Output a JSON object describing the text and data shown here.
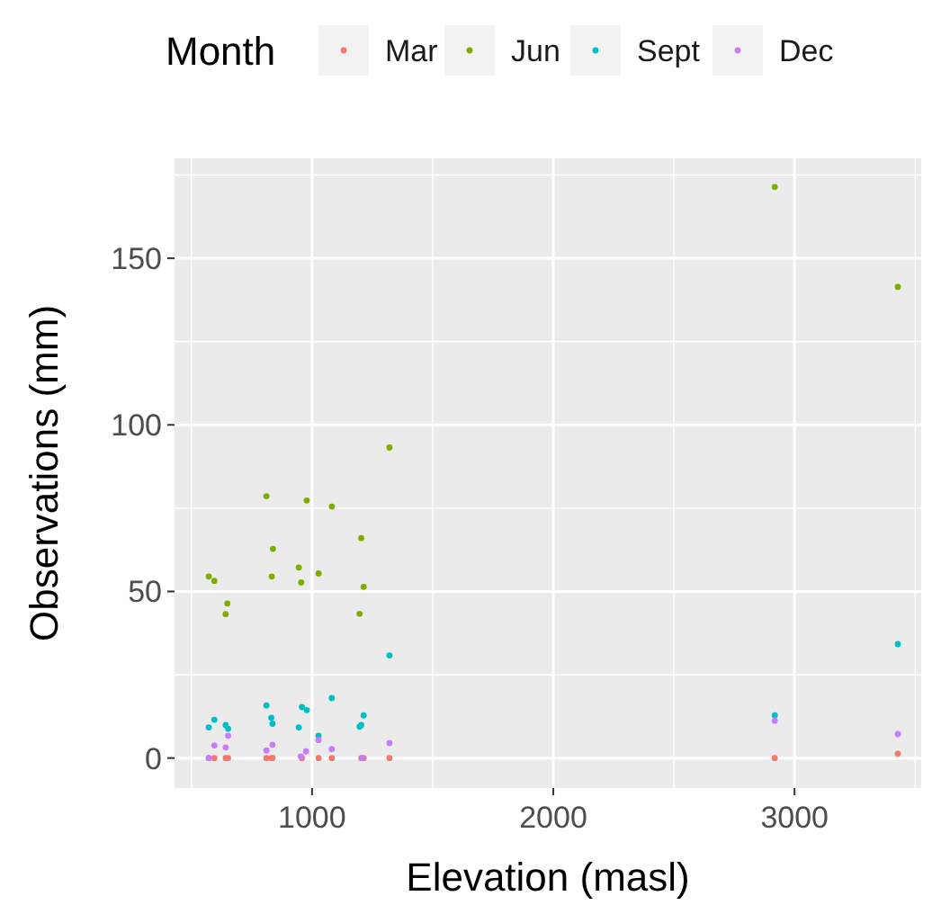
{
  "chart_data": {
    "type": "scatter",
    "xlabel": "Elevation (masl)",
    "ylabel": "Observations (mm)",
    "legend_title": "Month",
    "legend": "top",
    "grid": true,
    "marker": "circle",
    "xlim": [
      430,
      3525
    ],
    "ylim": [
      -9,
      180
    ],
    "xticks": [
      1000,
      2000,
      3000
    ],
    "yticks": [
      0,
      50,
      100,
      150
    ],
    "series": [
      {
        "name": "Mar",
        "color": "#f8766d",
        "x": [
          572,
          595,
          642,
          652,
          811,
          833,
          836,
          958,
          1027,
          1082,
          1204,
          1214,
          1321,
          2918,
          3428
        ],
        "values": [
          0,
          0,
          0,
          0,
          0,
          0,
          0,
          0,
          0,
          0,
          0,
          0,
          0,
          0,
          1.3
        ]
      },
      {
        "name": "Jun",
        "color": "#7cae00",
        "x": [
          1321,
          811,
          978,
          1082,
          1204,
          838,
          945,
          572,
          595,
          833,
          1027,
          955,
          1214,
          649,
          642,
          1197,
          2918,
          3428
        ],
        "values": [
          93.2,
          78.6,
          77.3,
          75.5,
          66.0,
          62.8,
          57.2,
          54.5,
          53.2,
          54.5,
          55.4,
          52.7,
          51.4,
          46.4,
          43.2,
          43.3,
          171.4,
          141.4
        ]
      },
      {
        "name": "Sept",
        "color": "#00bfc4",
        "x": [
          1321,
          1082,
          811,
          958,
          978,
          831,
          836,
          595,
          572,
          642,
          652,
          945,
          1214,
          1204,
          1197,
          1027,
          2918,
          3428
        ],
        "values": [
          30.8,
          18.0,
          15.8,
          15.3,
          14.4,
          12.1,
          10.3,
          11.5,
          9.2,
          9.9,
          8.8,
          9.2,
          12.8,
          9.9,
          9.4,
          6.7,
          12.8,
          34.2
        ]
      },
      {
        "name": "Dec",
        "color": "#c77cff",
        "x": [
          595,
          642,
          652,
          811,
          836,
          975,
          953,
          1027,
          1082,
          1321,
          572,
          1209,
          2918,
          3428
        ],
        "values": [
          3.8,
          3.2,
          6.7,
          2.3,
          4.0,
          2.0,
          0.5,
          5.4,
          2.7,
          4.5,
          0,
          0,
          11.2,
          7.2
        ]
      }
    ]
  }
}
